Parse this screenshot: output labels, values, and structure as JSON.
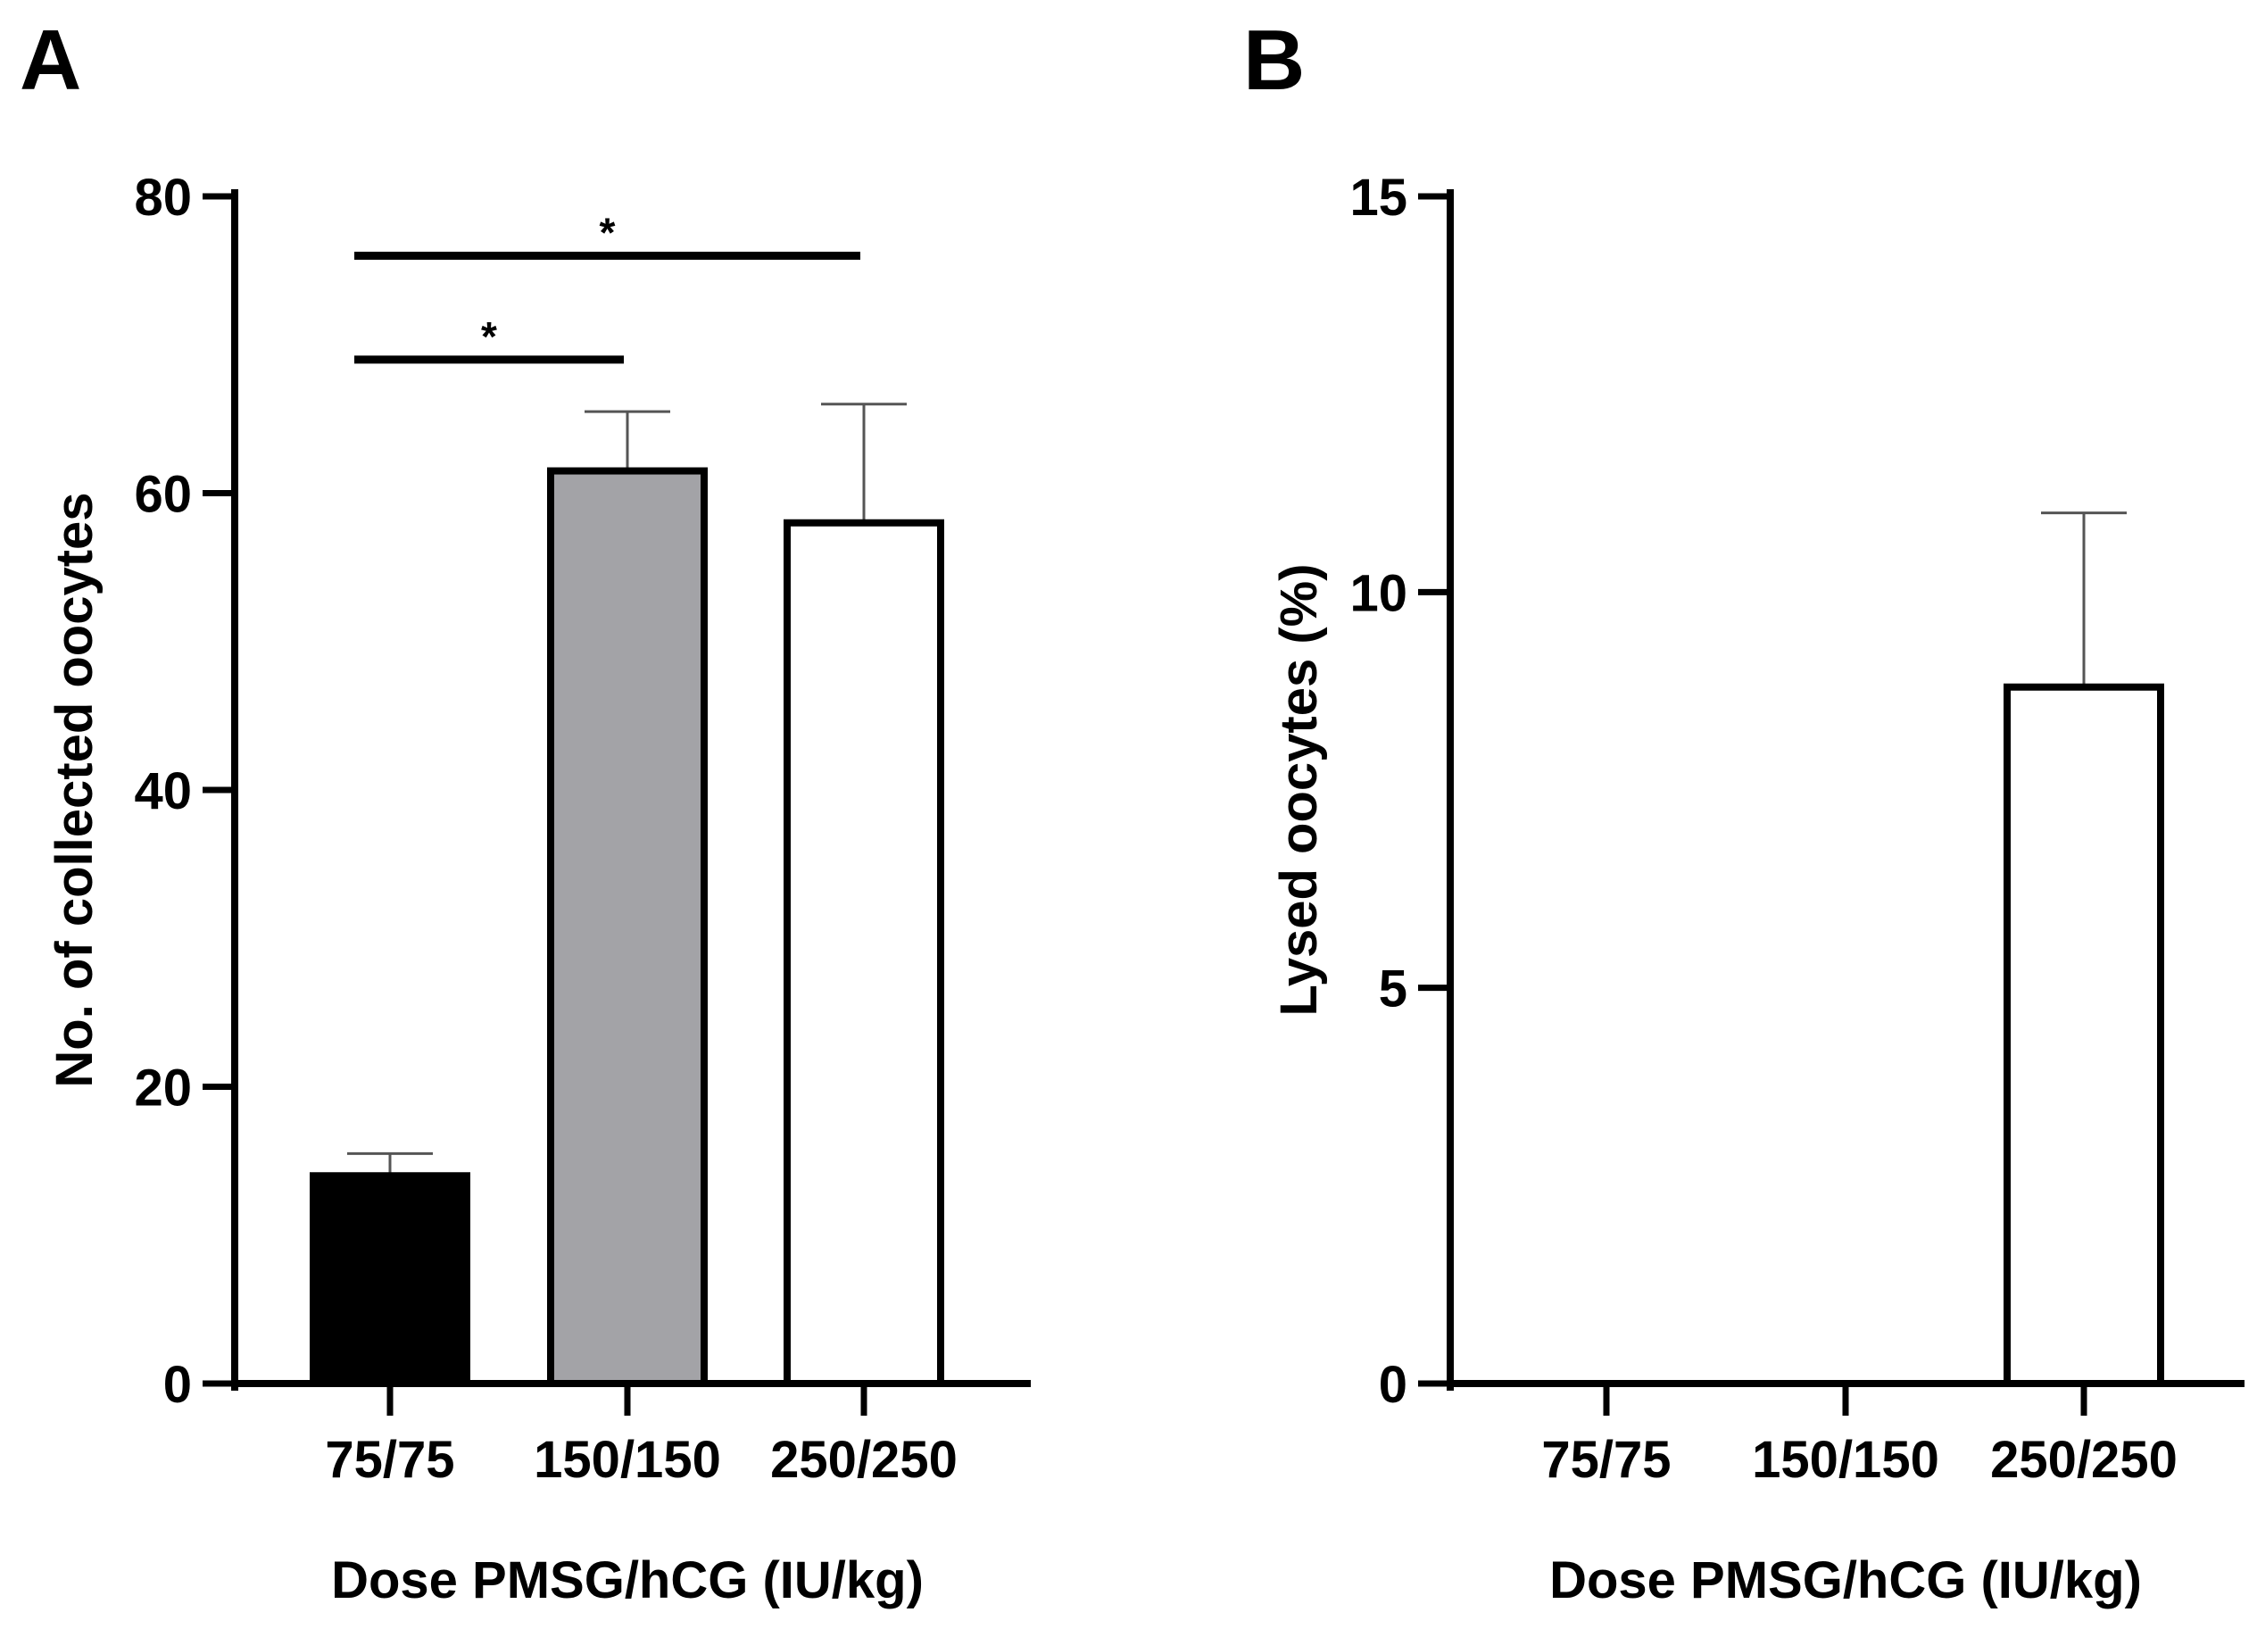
{
  "chart_data": [
    {
      "panel_label": "A",
      "type": "bar",
      "categories": [
        "75/75",
        "150/150",
        "250/250"
      ],
      "values": [
        14,
        61.5,
        58
      ],
      "error_upper": [
        15.5,
        65.5,
        66
      ],
      "bar_colors": [
        "#000000",
        "#a3a3a7",
        "#ffffff"
      ],
      "xlabel": "Dose PMSG/hCG (IU/kg)",
      "ylabel": "No. of collected oocytes",
      "ylim": [
        0,
        80
      ],
      "yticks": [
        0,
        20,
        40,
        60,
        80
      ],
      "ytick_labels": [
        "0",
        "20",
        "40",
        "60",
        "80"
      ],
      "significance": [
        {
          "from": 0,
          "to": 1,
          "y": 69,
          "label": "*"
        },
        {
          "from": 0,
          "to": 2,
          "y": 76,
          "label": "*"
        }
      ],
      "grid": false
    },
    {
      "panel_label": "B",
      "type": "bar",
      "categories": [
        "75/75",
        "150/150",
        "250/250"
      ],
      "values": [
        0,
        0,
        8.8
      ],
      "error_upper": [
        0,
        0,
        11
      ],
      "bar_colors": [
        "#000000",
        "#a3a3a7",
        "#ffffff"
      ],
      "xlabel": "Dose PMSG/hCG (IU/kg)",
      "ylabel": "Lysed oocytes (%)",
      "ylim": [
        0,
        15
      ],
      "yticks": [
        0,
        5,
        10,
        15
      ],
      "ytick_labels": [
        "0",
        "5",
        "10",
        "15"
      ],
      "significance": [],
      "grid": false
    }
  ]
}
